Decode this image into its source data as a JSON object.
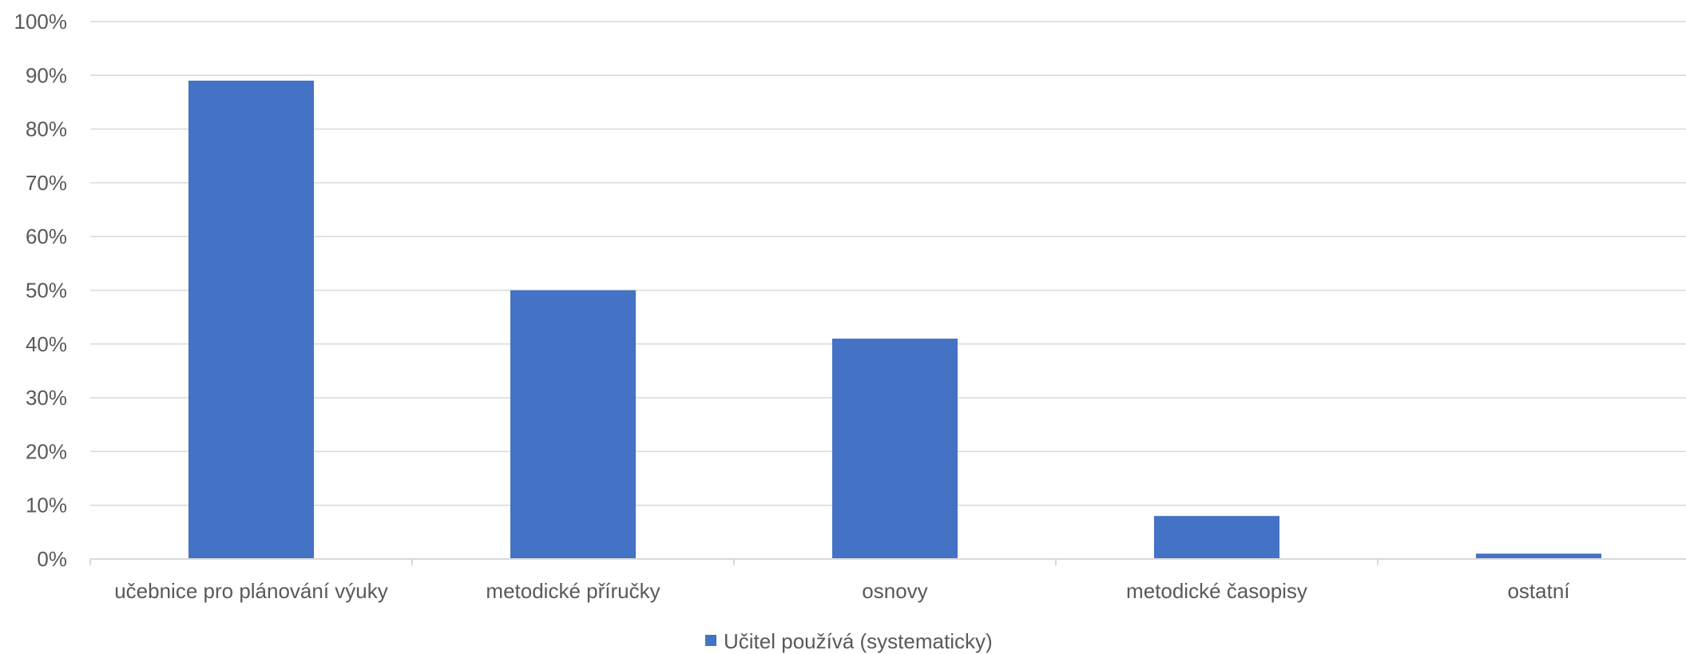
{
  "chart_data": {
    "type": "bar",
    "categories": [
      "učebnice pro plánování výuky",
      "metodické příručky",
      "osnovy",
      "metodické časopisy",
      "ostatní"
    ],
    "series": [
      {
        "name": "Učitel používá (systematicky)",
        "values": [
          89,
          50,
          41,
          8,
          1
        ],
        "color": "#4472C4"
      }
    ],
    "y_ticks": [
      "0%",
      "10%",
      "20%",
      "30%",
      "40%",
      "50%",
      "60%",
      "70%",
      "80%",
      "90%",
      "100%"
    ],
    "ylim": [
      0,
      100
    ],
    "grid": true,
    "legend_position": "bottom",
    "colors": {
      "bar": "#4472C4",
      "grid": "#D9D9D9",
      "text": "#595959"
    }
  }
}
